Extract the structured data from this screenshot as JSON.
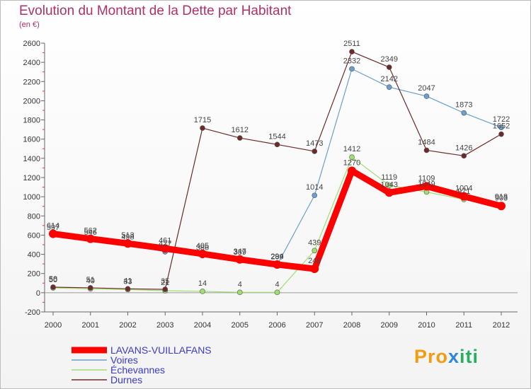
{
  "chart_data": {
    "type": "line",
    "title": "Evolution du Montant de la Dette par Habitant",
    "subtitle": "(en €)",
    "xlabel": "",
    "ylabel": "",
    "x": [
      "2000",
      "2001",
      "2002",
      "2003",
      "2004",
      "2005",
      "2006",
      "2007",
      "2008",
      "2009",
      "2010",
      "2011",
      "2012"
    ],
    "ylim": [
      -200,
      2600
    ],
    "yticks": [
      -200,
      0,
      200,
      400,
      600,
      800,
      1000,
      1200,
      1400,
      1600,
      1800,
      2000,
      2200,
      2400,
      2600
    ],
    "grid": false,
    "legend": "bottom-left",
    "series": [
      {
        "name": "LAVANS-VUILLAFANS",
        "color": "#ff0000",
        "values": [
          614,
          562,
          513,
          461,
          405,
          347,
          294,
          249,
          1270,
          1043,
          1109,
          1004,
          903
        ]
      },
      {
        "name": "Voires",
        "color": "#6a9fcf",
        "values": [
          597,
          546,
          498,
          427,
          386,
          339,
          289,
          1014,
          2332,
          2142,
          2047,
          1873,
          1722
        ]
      },
      {
        "name": "Échevannes",
        "color": "#a0e070",
        "values": [
          50,
          40,
          33,
          21,
          14,
          4,
          4,
          439,
          1412,
          1119,
          1049,
          971,
          918
        ]
      },
      {
        "name": "Durnes",
        "color": "#6e2a2a",
        "values": [
          58,
          51,
          41,
          35,
          1715,
          1612,
          1544,
          1473,
          2511,
          2349,
          1484,
          1426,
          1652
        ]
      }
    ]
  },
  "logo": {
    "p1": "Pro",
    "p2": "x",
    "p3": "iti"
  }
}
